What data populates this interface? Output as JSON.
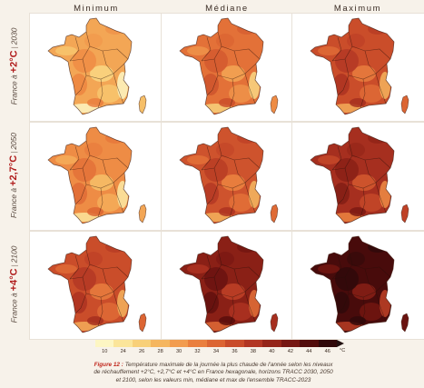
{
  "columns": [
    "Minimum",
    "Médiane",
    "Maximum"
  ],
  "rows": [
    {
      "prefix": "France à",
      "warming": "+2°C",
      "year": "2030"
    },
    {
      "prefix": "France à",
      "warming": "+2,7°C",
      "year": "2050"
    },
    {
      "prefix": "France à",
      "warming": "+4°C",
      "year": "2100"
    }
  ],
  "map_level": [
    [
      0.3,
      0.46,
      0.58
    ],
    [
      0.38,
      0.56,
      0.7
    ],
    [
      0.58,
      0.78,
      0.94
    ]
  ],
  "legend": {
    "ticks": [
      "10",
      "24",
      "26",
      "28",
      "30",
      "32",
      "34",
      "36",
      "38",
      "40",
      "42",
      "44",
      "46"
    ],
    "unit": "°C",
    "colors": [
      "#fdf6c3",
      "#fbe59a",
      "#f8d079",
      "#f5b65f",
      "#f29c4f",
      "#ea7f3e",
      "#dc6533",
      "#c94c2a",
      "#b23623",
      "#952519",
      "#761712",
      "#520c0b",
      "#30090a"
    ]
  },
  "caption": {
    "figure_label": "Figure 12 :",
    "line1": "Température maximale de la journée la plus chaude de l'année selon les niveaux",
    "line2": "de réchauffement +2°C, +2,7°C et +4°C en France hexagonale, horizons TRACC 2030, 2050",
    "line3": "et 2100, selon les valeurs min, médiane et max de l'ensemble TRACC-2023"
  }
}
